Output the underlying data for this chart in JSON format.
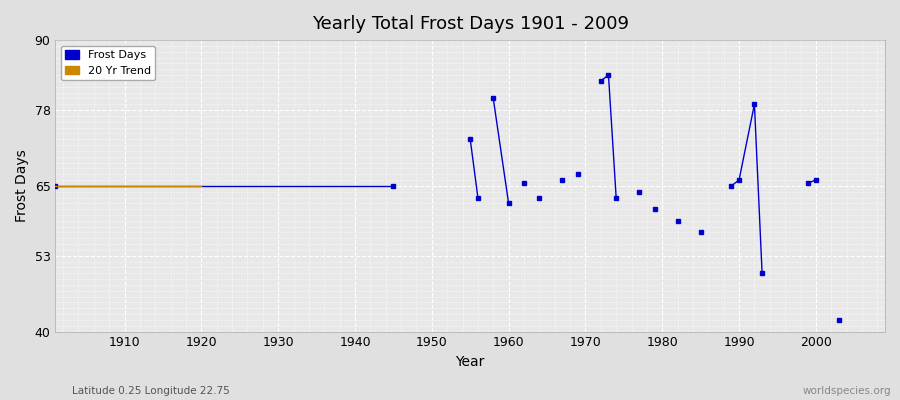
{
  "title": "Yearly Total Frost Days 1901 - 2009",
  "xlabel": "Year",
  "ylabel": "Frost Days",
  "subtitle": "Latitude 0.25 Longitude 22.75",
  "watermark": "worldspecies.org",
  "xlim": [
    1901,
    2009
  ],
  "ylim": [
    40,
    90
  ],
  "yticks": [
    40,
    53,
    65,
    78,
    90
  ],
  "xticks": [
    1910,
    1920,
    1930,
    1940,
    1950,
    1960,
    1970,
    1980,
    1990,
    2000
  ],
  "bg_color": "#e0e0e0",
  "plot_bg_color": "#e8e8e8",
  "grid_color": "#ffffff",
  "frost_days_color": "#0000cc",
  "trend_color": "#cc8800",
  "frost_days_segments": [
    [
      [
        1901,
        65
      ],
      [
        1945,
        65
      ]
    ],
    [
      [
        1955,
        73
      ],
      [
        1956,
        63
      ]
    ],
    [
      [
        1958,
        80
      ],
      [
        1960,
        62
      ]
    ],
    [
      [
        1962,
        65.5
      ]
    ],
    [
      [
        1964,
        63
      ]
    ],
    [
      [
        1967,
        66
      ]
    ],
    [
      [
        1969,
        67
      ]
    ],
    [
      [
        1972,
        83
      ],
      [
        1973,
        84
      ],
      [
        1974,
        63
      ]
    ],
    [
      [
        1977,
        64
      ]
    ],
    [
      [
        1979,
        61
      ]
    ],
    [
      [
        1982,
        59
      ]
    ],
    [
      [
        1985,
        57
      ]
    ],
    [
      [
        1989,
        65
      ],
      [
        1990,
        66
      ],
      [
        1992,
        79
      ],
      [
        1993,
        50
      ]
    ],
    [
      [
        1999,
        65.5
      ],
      [
        2000,
        66
      ]
    ],
    [
      [
        2003,
        42
      ]
    ]
  ],
  "trend_data": [
    [
      1901,
      65
    ],
    [
      1920,
      65
    ]
  ]
}
